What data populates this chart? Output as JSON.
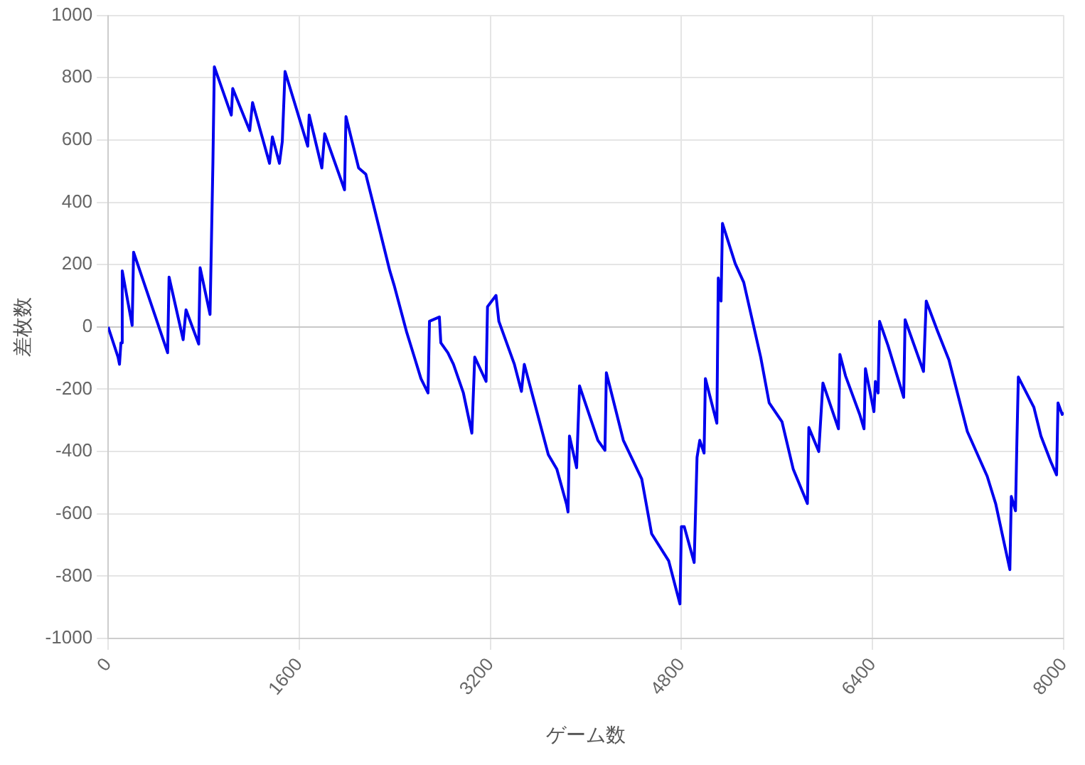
{
  "chart_data": {
    "type": "line",
    "xlabel": "ゲーム数",
    "ylabel": "差枚数",
    "xlim": [
      0,
      8000
    ],
    "xticks": [
      0,
      1600,
      3200,
      4800,
      6400,
      8000
    ],
    "ylim": [
      -1000,
      1000
    ],
    "yticks": [
      -1000,
      -800,
      -600,
      -400,
      -200,
      0,
      200,
      400,
      600,
      800,
      1000
    ],
    "grid": true,
    "legend": false,
    "marker": "none",
    "line_style": "solid",
    "series": [
      {
        "color": "#0000ee",
        "x": [
          0,
          83,
          95,
          107,
          118,
          201,
          213,
          498,
          510,
          628,
          652,
          758,
          770,
          853,
          865,
          877,
          889,
          1031,
          1043,
          1185,
          1209,
          1351,
          1375,
          1434,
          1458,
          1481,
          1671,
          1683,
          1789,
          1813,
          1979,
          1991,
          2097,
          2157,
          2216,
          2358,
          2394,
          2500,
          2571,
          2619,
          2678,
          2690,
          2773,
          2785,
          2844,
          2891,
          2974,
          3045,
          3069,
          3164,
          3176,
          3247,
          3271,
          3401,
          3460,
          3484,
          3685,
          3756,
          3839,
          3850,
          3862,
          3922,
          3946,
          4100,
          4159,
          4171,
          4313,
          4467,
          4550,
          4693,
          4787,
          4799,
          4823,
          4906,
          4930,
          4953,
          4989,
          5000,
          5096,
          5108,
          5131,
          5143,
          5250,
          5321,
          5463,
          5534,
          5641,
          5735,
          5854,
          5866,
          5949,
          5984,
          6114,
          6126,
          6173,
          6292,
          6328,
          6340,
          6411,
          6423,
          6446,
          6458,
          6529,
          6660,
          6672,
          6826,
          6849,
          6944,
          7039,
          7193,
          7359,
          7430,
          7549,
          7561,
          7596,
          7608,
          7620,
          7750,
          7809,
          7892,
          7940,
          7952,
          7987,
          8000
        ],
        "values": [
          0,
          -97,
          -120,
          -51,
          180,
          5,
          240,
          -83,
          160,
          -41,
          55,
          -55,
          190,
          40,
          280,
          525,
          835,
          680,
          765,
          630,
          720,
          525,
          610,
          525,
          595,
          820,
          580,
          680,
          510,
          620,
          440,
          675,
          510,
          490,
          400,
          180,
          134,
          -18,
          -106,
          -166,
          -212,
          18,
          32,
          -51,
          -83,
          -120,
          -212,
          -341,
          -97,
          -175,
          65,
          101,
          18,
          -120,
          -207,
          -120,
          -410,
          -456,
          -571,
          -594,
          -350,
          -452,
          -189,
          -364,
          -396,
          -147,
          -364,
          -488,
          -664,
          -751,
          -889,
          -641,
          -641,
          -756,
          -419,
          -364,
          -405,
          -166,
          -309,
          157,
          83,
          332,
          203,
          143,
          -97,
          -244,
          -304,
          -456,
          -567,
          -323,
          -400,
          -180,
          -327,
          -88,
          -157,
          -281,
          -327,
          -134,
          -272,
          -175,
          -212,
          18,
          -60,
          -226,
          23,
          -143,
          83,
          -14,
          -106,
          -336,
          -479,
          -567,
          -779,
          -544,
          -590,
          -364,
          -161,
          -258,
          -350,
          -433,
          -475,
          -244,
          -281,
          -275
        ]
      }
    ]
  }
}
